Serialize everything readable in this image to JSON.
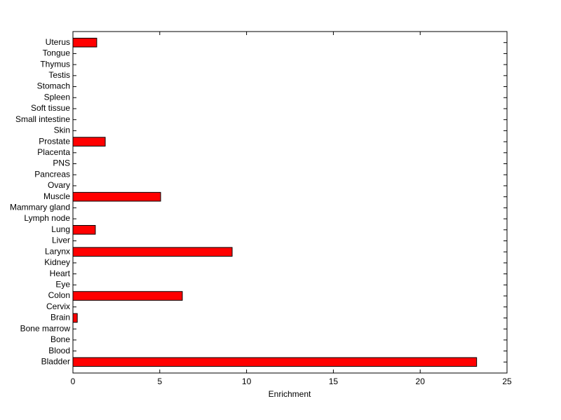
{
  "chart_data": {
    "type": "barh",
    "xlabel": "Enrichment",
    "categories": [
      "Bladder",
      "Blood",
      "Bone",
      "Bone marrow",
      "Brain",
      "Cervix",
      "Colon",
      "Eye",
      "Heart",
      "Kidney",
      "Larynx",
      "Liver",
      "Lung",
      "Lymph node",
      "Mammary gland",
      "Muscle",
      "Ovary",
      "Pancreas",
      "PNS",
      "Placenta",
      "Prostate",
      "Skin",
      "Small intestine",
      "Soft tissue",
      "Spleen",
      "Stomach",
      "Testis",
      "Thymus",
      "Tongue",
      "Uterus"
    ],
    "values": [
      23.25,
      0,
      0,
      0,
      0.25,
      0,
      6.3,
      0,
      0,
      0,
      9.17,
      0,
      1.29,
      0,
      0,
      5.05,
      0,
      0,
      0,
      0,
      1.86,
      0,
      0,
      0,
      0,
      0,
      0,
      0,
      0,
      1.37
    ],
    "color": "#ff0000",
    "xlim": [
      0,
      25
    ],
    "xticks": [
      0,
      5,
      10,
      15,
      20,
      25
    ],
    "grid": false
  }
}
